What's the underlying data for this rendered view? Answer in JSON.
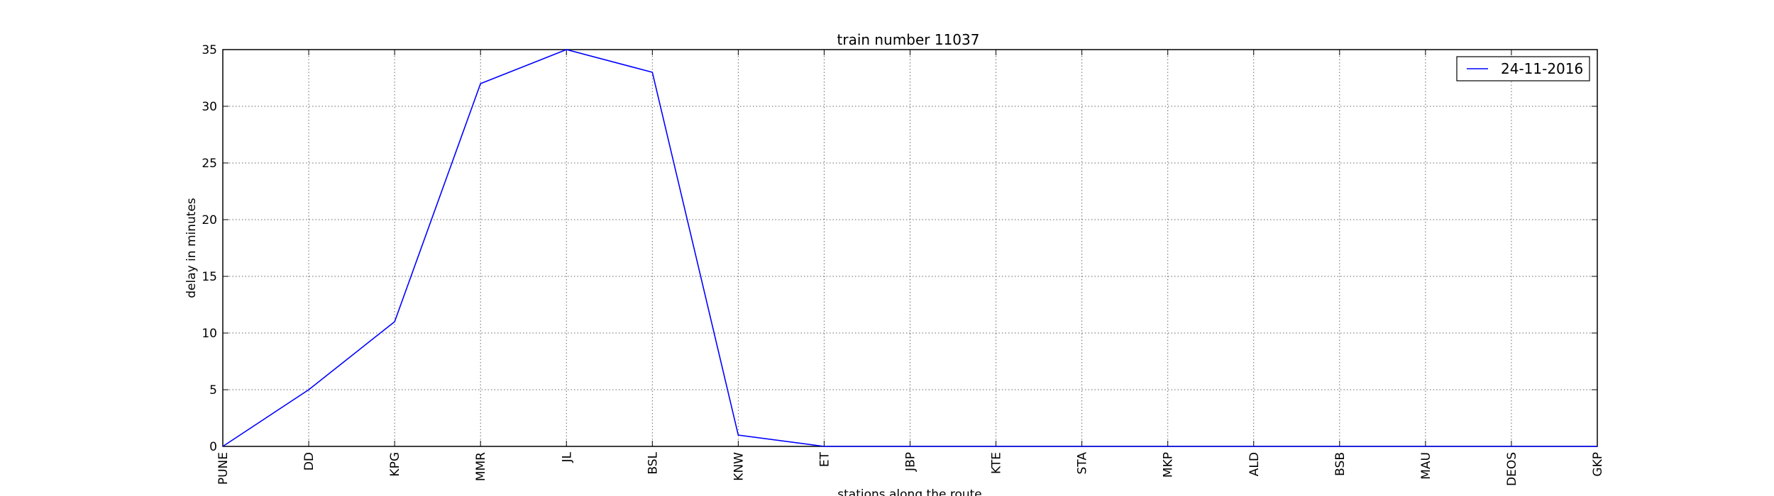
{
  "chart_data": {
    "type": "line",
    "title": "train number 11037",
    "xlabel": "stations along the route",
    "ylabel": "delay in minutes",
    "categories": [
      "PUNE",
      "DD",
      "KPG",
      "MMR",
      "JL",
      "BSL",
      "KNW",
      "ET",
      "JBP",
      "KTE",
      "STA",
      "MKP",
      "ALD",
      "BSB",
      "MAU",
      "DEOS",
      "GKP"
    ],
    "series": [
      {
        "name": "24-11-2016",
        "color": "#0000ff",
        "values": [
          0,
          5,
          11,
          32,
          35,
          33,
          1,
          0,
          0,
          0,
          0,
          0,
          0,
          0,
          0,
          0,
          0
        ]
      }
    ],
    "ylim": [
      0,
      35
    ],
    "yticks": [
      0,
      5,
      10,
      15,
      20,
      25,
      30,
      35
    ],
    "grid": true,
    "legend_position": "top-right"
  }
}
